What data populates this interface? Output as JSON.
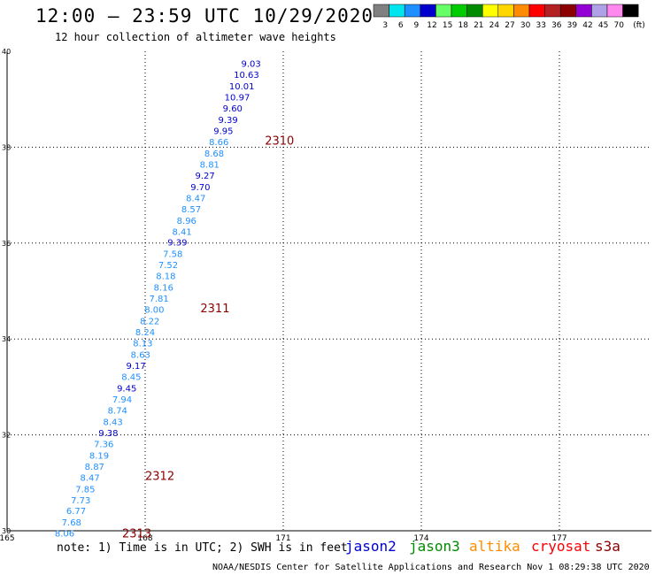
{
  "header": {
    "title": "12:00 – 23:59 UTC 10/29/2020",
    "subtitle": "12 hour collection of altimeter wave heights"
  },
  "legend": {
    "unit": "(ft)",
    "bins": [
      {
        "label": "3",
        "color": "#808080"
      },
      {
        "label": "6",
        "color": "#00e5ee"
      },
      {
        "label": "9",
        "color": "#1e90ff"
      },
      {
        "label": "12",
        "color": "#0000cd"
      },
      {
        "label": "15",
        "color": "#66ff66"
      },
      {
        "label": "18",
        "color": "#00cc00"
      },
      {
        "label": "21",
        "color": "#008b00"
      },
      {
        "label": "24",
        "color": "#ffff00"
      },
      {
        "label": "27",
        "color": "#ffd700"
      },
      {
        "label": "30",
        "color": "#ff8c00"
      },
      {
        "label": "33",
        "color": "#ff0000"
      },
      {
        "label": "36",
        "color": "#b22222"
      },
      {
        "label": "39",
        "color": "#8b0000"
      },
      {
        "label": "42",
        "color": "#9400d3"
      },
      {
        "label": "45",
        "color": "#b0a0e8"
      },
      {
        "label": "70",
        "color": "#ff88ee"
      },
      {
        "label": "",
        "color": "#000000"
      }
    ]
  },
  "chart_data": {
    "type": "scatter",
    "xlim": [
      165,
      179
    ],
    "ylim": [
      30,
      40
    ],
    "x_ticks": [
      "165",
      "168",
      "171",
      "174",
      "177"
    ],
    "y_ticks": [
      "30",
      "32",
      "34",
      "36",
      "38",
      "40"
    ],
    "grid": true,
    "series": [
      {
        "name": "jason2",
        "color": "#0000cd"
      },
      {
        "name": "jason3",
        "color": "#008b00"
      },
      {
        "name": "altika",
        "color": "#ff8c00"
      },
      {
        "name": "cryosat",
        "color": "#ff0000"
      },
      {
        "name": "s3a",
        "color": "#8b0000"
      }
    ],
    "points": [
      {
        "lon": 170.3,
        "lat": 39.75,
        "swh": "9.03",
        "color": "#0000cd"
      },
      {
        "lon": 170.2,
        "lat": 39.52,
        "swh": "10.63",
        "color": "#0000cd"
      },
      {
        "lon": 170.1,
        "lat": 39.28,
        "swh": "10.01",
        "color": "#0000cd"
      },
      {
        "lon": 170.0,
        "lat": 39.05,
        "swh": "10.97",
        "color": "#0000cd"
      },
      {
        "lon": 169.9,
        "lat": 38.82,
        "swh": "9.60",
        "color": "#0000cd"
      },
      {
        "lon": 169.8,
        "lat": 38.58,
        "swh": "9.39",
        "color": "#0000cd"
      },
      {
        "lon": 169.7,
        "lat": 38.35,
        "swh": "9.95",
        "color": "#0000cd"
      },
      {
        "lon": 169.6,
        "lat": 38.12,
        "swh": "8.66",
        "color": "#1e90ff"
      },
      {
        "lon": 169.5,
        "lat": 37.88,
        "swh": "8.68",
        "color": "#1e90ff"
      },
      {
        "lon": 169.4,
        "lat": 37.65,
        "swh": "8.81",
        "color": "#1e90ff"
      },
      {
        "lon": 169.3,
        "lat": 37.42,
        "swh": "9.27",
        "color": "#0000cd"
      },
      {
        "lon": 169.2,
        "lat": 37.18,
        "swh": "9.70",
        "color": "#0000cd"
      },
      {
        "lon": 169.1,
        "lat": 36.95,
        "swh": "8.47",
        "color": "#1e90ff"
      },
      {
        "lon": 169.0,
        "lat": 36.72,
        "swh": "8.57",
        "color": "#1e90ff"
      },
      {
        "lon": 168.9,
        "lat": 36.48,
        "swh": "8.96",
        "color": "#1e90ff"
      },
      {
        "lon": 168.8,
        "lat": 36.25,
        "swh": "8.41",
        "color": "#1e90ff"
      },
      {
        "lon": 168.7,
        "lat": 36.02,
        "swh": "9.39",
        "color": "#0000cd"
      },
      {
        "lon": 168.6,
        "lat": 35.78,
        "swh": "7.58",
        "color": "#1e90ff"
      },
      {
        "lon": 168.5,
        "lat": 35.55,
        "swh": "7.52",
        "color": "#1e90ff"
      },
      {
        "lon": 168.45,
        "lat": 35.32,
        "swh": "8.18",
        "color": "#1e90ff"
      },
      {
        "lon": 168.4,
        "lat": 35.08,
        "swh": "8.16",
        "color": "#1e90ff"
      },
      {
        "lon": 168.3,
        "lat": 34.85,
        "swh": "7.81",
        "color": "#1e90ff"
      },
      {
        "lon": 168.2,
        "lat": 34.62,
        "swh": "8.00",
        "color": "#1e90ff"
      },
      {
        "lon": 168.1,
        "lat": 34.38,
        "swh": "8.22",
        "color": "#1e90ff"
      },
      {
        "lon": 168.0,
        "lat": 34.15,
        "swh": "8.24",
        "color": "#1e90ff"
      },
      {
        "lon": 167.95,
        "lat": 33.92,
        "swh": "8.13",
        "color": "#1e90ff"
      },
      {
        "lon": 167.9,
        "lat": 33.68,
        "swh": "8.63",
        "color": "#1e90ff"
      },
      {
        "lon": 167.8,
        "lat": 33.45,
        "swh": "9.17",
        "color": "#0000cd"
      },
      {
        "lon": 167.7,
        "lat": 33.22,
        "swh": "8.45",
        "color": "#1e90ff"
      },
      {
        "lon": 167.6,
        "lat": 32.98,
        "swh": "9.45",
        "color": "#0000cd"
      },
      {
        "lon": 167.5,
        "lat": 32.75,
        "swh": "7.94",
        "color": "#1e90ff"
      },
      {
        "lon": 167.4,
        "lat": 32.52,
        "swh": "8.74",
        "color": "#1e90ff"
      },
      {
        "lon": 167.3,
        "lat": 32.28,
        "swh": "8.43",
        "color": "#1e90ff"
      },
      {
        "lon": 167.2,
        "lat": 32.05,
        "swh": "9.38",
        "color": "#0000cd"
      },
      {
        "lon": 167.1,
        "lat": 31.82,
        "swh": "7.36",
        "color": "#1e90ff"
      },
      {
        "lon": 167.0,
        "lat": 31.58,
        "swh": "8.19",
        "color": "#1e90ff"
      },
      {
        "lon": 166.9,
        "lat": 31.35,
        "swh": "8.87",
        "color": "#1e90ff"
      },
      {
        "lon": 166.8,
        "lat": 31.12,
        "swh": "8.47",
        "color": "#1e90ff"
      },
      {
        "lon": 166.7,
        "lat": 30.88,
        "swh": "7.85",
        "color": "#1e90ff"
      },
      {
        "lon": 166.6,
        "lat": 30.65,
        "swh": "7.73",
        "color": "#1e90ff"
      },
      {
        "lon": 166.5,
        "lat": 30.42,
        "swh": "6.77",
        "color": "#1e90ff"
      },
      {
        "lon": 166.4,
        "lat": 30.18,
        "swh": "7.68",
        "color": "#1e90ff"
      },
      {
        "lon": 166.25,
        "lat": 29.95,
        "swh": "8.06",
        "color": "#1e90ff"
      }
    ],
    "time_labels": [
      {
        "text": "2310",
        "lon": 170.6,
        "lat": 38.15,
        "color": "#8b0000"
      },
      {
        "text": "2311",
        "lon": 169.2,
        "lat": 34.65,
        "color": "#8b0000"
      },
      {
        "text": "2312",
        "lon": 168.0,
        "lat": 31.15,
        "color": "#8b0000"
      },
      {
        "text": "2313",
        "lon": 167.5,
        "lat": 29.95,
        "color": "#8b0000"
      }
    ]
  },
  "footer": {
    "note": "note: 1) Time is in UTC; 2) SWH is in feet",
    "credit": "NOAA/NESDIS Center for Satellite Applications and Research   Nov  1 08:29:38 UTC 2020"
  }
}
